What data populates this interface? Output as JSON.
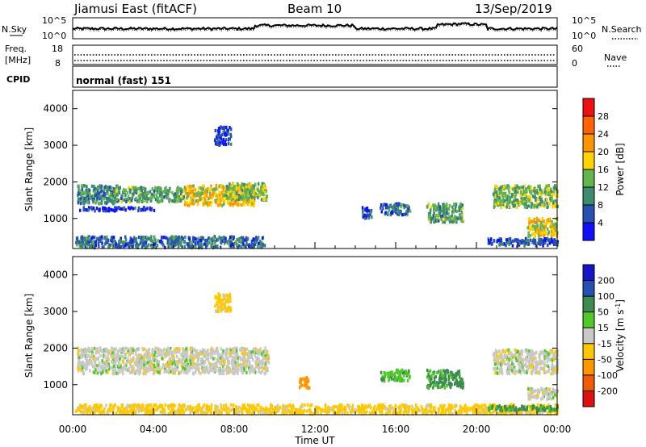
{
  "header": {
    "station": "Jiamusi East (fitACF)",
    "beam": "Beam 10",
    "date": "13/Sep/2019"
  },
  "top_panel": {
    "left_label": "N.Sky",
    "ticks_left": [
      "10^5",
      "10^0"
    ],
    "ticks_right": [
      "10^5",
      "10^0"
    ],
    "right_label": "N.Search"
  },
  "freq_panel": {
    "label_line1": "Freq.",
    "label_line2": "[MHz]",
    "ticks_left": [
      "18",
      "8"
    ],
    "ticks_right": [
      "60",
      "0"
    ],
    "right_label": "Nave"
  },
  "cpid": {
    "label": "CPID",
    "value": "normal (fast) 151"
  },
  "x_axis": {
    "ticks": [
      "00:00",
      "04:00",
      "08:00",
      "12:00",
      "16:00",
      "20:00",
      "00:00"
    ],
    "label": "Time UT"
  },
  "panels": {
    "power": {
      "ylabel": "Slant Range [km]",
      "colorbar_label": "Power [dB]"
    },
    "velocity": {
      "ylabel": "Slant Range [km]",
      "colorbar_label_main": "Velocity [m s",
      "colorbar_label_sup": "-1",
      "colorbar_label_end": "]"
    }
  },
  "chart_data": [
    {
      "type": "heatmap",
      "name": "power",
      "x_range_hours": [
        0,
        24
      ],
      "ylim": [
        180,
        4500
      ],
      "yticks": [
        1000,
        2000,
        3000,
        4000
      ],
      "colorbar": {
        "ticks": [
          "4",
          "8",
          "12",
          "16",
          "20",
          "24",
          "28"
        ],
        "colors": [
          "#1010ff",
          "#2850b4",
          "#3c8c6e",
          "#64b450",
          "#ffd200",
          "#ff9600",
          "#ff6400",
          "#f01010"
        ],
        "range": [
          0,
          32
        ]
      },
      "regions": [
        {
          "t0": 0.2,
          "t1": 2.2,
          "r0": 1400,
          "r1": 1900,
          "level": 10
        },
        {
          "t0": 2.0,
          "t1": 5.5,
          "r0": 1450,
          "r1": 1850,
          "level": 12
        },
        {
          "t0": 5.5,
          "t1": 9.0,
          "r0": 1350,
          "r1": 1900,
          "level": 18
        },
        {
          "t0": 7.5,
          "t1": 9.6,
          "r0": 1500,
          "r1": 1950,
          "level": 14
        },
        {
          "t0": 0.3,
          "t1": 4.0,
          "r0": 1200,
          "r1": 1300,
          "level": 4
        },
        {
          "t0": 7.0,
          "t1": 7.8,
          "r0": 3000,
          "r1": 3500,
          "level": 4
        },
        {
          "t0": 0.1,
          "t1": 9.5,
          "r0": 200,
          "r1": 500,
          "level": 8
        },
        {
          "t0": 14.3,
          "t1": 14.8,
          "r0": 1000,
          "r1": 1300,
          "level": 6
        },
        {
          "t0": 15.2,
          "t1": 16.7,
          "r0": 1100,
          "r1": 1400,
          "level": 8
        },
        {
          "t0": 17.5,
          "t1": 19.3,
          "r0": 900,
          "r1": 1400,
          "level": 12
        },
        {
          "t0": 20.8,
          "t1": 24.0,
          "r0": 1300,
          "r1": 1900,
          "level": 14
        },
        {
          "t0": 22.5,
          "t1": 24.0,
          "r0": 500,
          "r1": 1000,
          "level": 18
        },
        {
          "t0": 20.5,
          "t1": 24.0,
          "r0": 250,
          "r1": 450,
          "level": 6
        }
      ]
    },
    {
      "type": "heatmap",
      "name": "velocity",
      "x_range_hours": [
        0,
        24
      ],
      "ylim": [
        180,
        4500
      ],
      "yticks": [
        1000,
        2000,
        3000,
        4000
      ],
      "colorbar": {
        "ticks": [
          "-200",
          "-100",
          "-50",
          "-15",
          "15",
          "50",
          "100",
          "200"
        ],
        "colors": [
          "#e01010",
          "#f05a00",
          "#ff9600",
          "#ffc800",
          "#c8c8c8",
          "#50c828",
          "#3c8c50",
          "#2850b4",
          "#1414c8"
        ],
        "range": [
          -250,
          250
        ]
      },
      "regions": [
        {
          "t0": 0.2,
          "t1": 9.7,
          "r0": 1300,
          "r1": 2000,
          "vel": 0
        },
        {
          "t0": 7.0,
          "t1": 7.8,
          "r0": 3000,
          "r1": 3500,
          "vel": -30
        },
        {
          "t0": 11.2,
          "t1": 11.7,
          "r0": 900,
          "r1": 1200,
          "vel": -80
        },
        {
          "t0": 15.2,
          "t1": 16.7,
          "r0": 1100,
          "r1": 1400,
          "vel": 40
        },
        {
          "t0": 17.5,
          "t1": 19.3,
          "r0": 900,
          "r1": 1400,
          "vel": 60
        },
        {
          "t0": 20.8,
          "t1": 24.0,
          "r0": 1300,
          "r1": 1950,
          "vel": 0
        },
        {
          "t0": 22.5,
          "t1": 24.0,
          "r0": 600,
          "r1": 900,
          "vel": 0
        },
        {
          "t0": 0.1,
          "t1": 24.0,
          "r0": 200,
          "r1": 450,
          "vel": -30
        },
        {
          "t0": 20.5,
          "t1": 24.0,
          "r0": 280,
          "r1": 420,
          "vel": 60
        }
      ]
    }
  ]
}
